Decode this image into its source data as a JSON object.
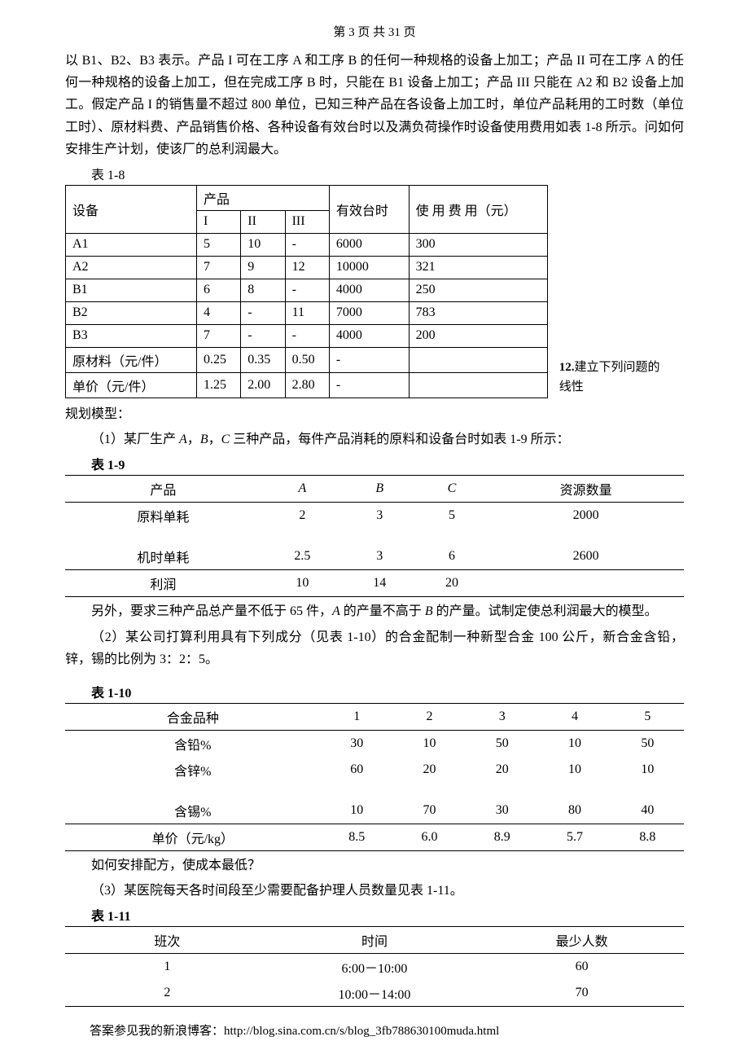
{
  "header": "第 3 页 共 31 页",
  "intro_text": "以 B1、B2、B3 表示。产品 I 可在工序 A 和工序 B 的任何一种规格的设备上加工；产品 II 可在工序 A 的任何一种规格的设备上加工，但在完成工序 B 时，只能在 B1 设备上加工；产品 III 只能在 A2 和 B2 设备上加工。假定产品 I 的销售量不超过 800 单位，已知三种产品在各设备上加工时，单位产品耗用的工时数（单位工时）、原材料费、产品销售价格、各种设备有效台时以及满负荷操作时设备使用费用如表 1-8 所示。问如何安排生产计划，使该厂的总利润最大。",
  "table18": {
    "caption": "表 1-8",
    "header": {
      "equipment": "设备",
      "product": "产品",
      "products": [
        "I",
        "II",
        "III"
      ],
      "hours": "有效台时",
      "cost": "使 用 费 用（元）"
    },
    "rows": [
      {
        "label": "A1",
        "p1": "5",
        "p2": "10",
        "p3": "-",
        "hours": "6000",
        "cost": "300"
      },
      {
        "label": "A2",
        "p1": "7",
        "p2": "9",
        "p3": "12",
        "hours": "10000",
        "cost": "321"
      },
      {
        "label": "B1",
        "p1": "6",
        "p2": "8",
        "p3": "-",
        "hours": "4000",
        "cost": "250"
      },
      {
        "label": "B2",
        "p1": "4",
        "p2": "-",
        "p3": "11",
        "hours": "7000",
        "cost": "783"
      },
      {
        "label": "B3",
        "p1": "7",
        "p2": "-",
        "p3": "-",
        "hours": "4000",
        "cost": "200"
      },
      {
        "label": "原材料（元/件）",
        "p1": "0.25",
        "p2": "0.35",
        "p3": "0.50",
        "hours": "-",
        "cost": ""
      },
      {
        "label": "单价（元/件）",
        "p1": "1.25",
        "p2": "2.00",
        "p3": "2.80",
        "hours": "-",
        "cost": ""
      }
    ]
  },
  "q12_side": "12.建立下列问题的线性",
  "q12_after": "规划模型：",
  "q12_1": "（1）某厂生产 A，B，C 三种产品，每件产品消耗的原料和设备台时如表 1-9 所示：",
  "table19": {
    "caption": "表 1-9",
    "columns": [
      "产品",
      "A",
      "B",
      "C",
      "资源数量"
    ],
    "rows": [
      [
        "原料单耗",
        "2",
        "3",
        "5",
        "2000"
      ],
      [
        "机时单耗",
        "2.5",
        "3",
        "6",
        "2600"
      ],
      [
        "利润",
        "10",
        "14",
        "20",
        ""
      ]
    ]
  },
  "q12_1_after": "另外，要求三种产品总产量不低于 65 件，A 的产量不高于 B 的产量。试制定使总利润最大的模型。",
  "q12_2a": "（2）某公司打算利用具有下列成分（见表 1-10）的合金配制一种新型合金 100 公斤，新合金含铅，锌，锡的比例为 3：2：5。",
  "table110": {
    "caption": "表 1-10",
    "columns": [
      "合金品种",
      "1",
      "2",
      "3",
      "4",
      "5"
    ],
    "rows": [
      [
        "含铅%",
        "30",
        "10",
        "50",
        "10",
        "50"
      ],
      [
        "含锌%",
        "60",
        "20",
        "20",
        "10",
        "10"
      ],
      [
        "含锡%",
        "10",
        "70",
        "30",
        "80",
        "40"
      ],
      [
        "单价（元/kg）",
        "8.5",
        "6.0",
        "8.9",
        "5.7",
        "8.8"
      ]
    ]
  },
  "q12_2_after": "如何安排配方，使成本最低？",
  "q12_3": "（3）某医院每天各时间段至少需要配备护理人员数量见表 1-11。",
  "table111": {
    "caption": "表 1-11",
    "columns": [
      "班次",
      "时间",
      "最少人数"
    ],
    "rows": [
      [
        "1",
        "6:00－10:00",
        "60"
      ],
      [
        "2",
        "10:00－14:00",
        "70"
      ]
    ]
  },
  "footer": "答案参见我的新浪博客：http://blog.sina.com.cn/s/blog_3fb788630100muda.html"
}
